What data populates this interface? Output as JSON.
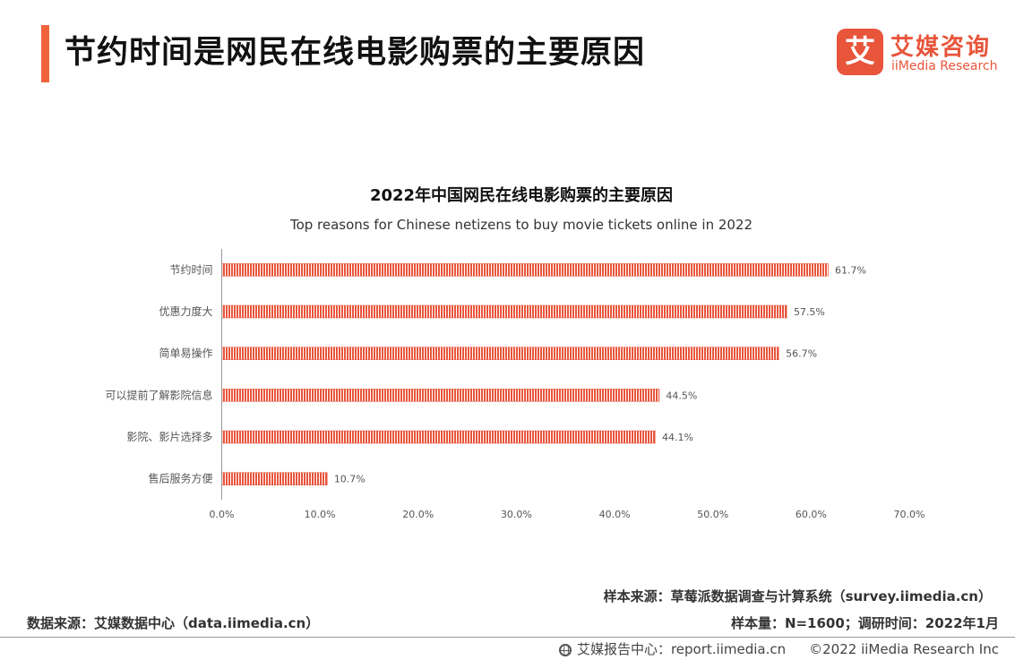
{
  "header": {
    "title": "节约时间是网民在线电影购票的主要原因",
    "accent_color": "#F0633A"
  },
  "logo": {
    "mark": "艾",
    "name_cn": "艾媒咨询",
    "name_en": "iiMedia Research",
    "color": "#E8553B"
  },
  "chart_data": {
    "type": "bar",
    "orientation": "horizontal",
    "title": "2022年中国网民在线电影购票的主要原因",
    "subtitle": "Top reasons for Chinese netizens to buy movie tickets online in 2022",
    "categories": [
      "节约时间",
      "优惠力度大",
      "简单易操作",
      "可以提前了解影院信息",
      "影院、影片选择多",
      "售后服务方便"
    ],
    "values": [
      61.7,
      57.5,
      56.7,
      44.5,
      44.1,
      10.7
    ],
    "value_labels": [
      "61.7%",
      "57.5%",
      "56.7%",
      "44.5%",
      "44.1%",
      "10.7%"
    ],
    "xlim": [
      0,
      70
    ],
    "x_ticks": [
      "0.0%",
      "10.0%",
      "20.0%",
      "30.0%",
      "40.0%",
      "50.0%",
      "60.0%",
      "70.0%"
    ],
    "bar_color": "#E8553B",
    "grid": false,
    "legend": "none"
  },
  "footer": {
    "source_right": "样本来源：草莓派数据调查与计算系统（survey.iimedia.cn）",
    "sample": "样本量：N=1600；调研时间：2022年1月",
    "source_left": "数据来源：艾媒数据中心（data.iimedia.cn）",
    "report_center": "艾媒报告中心：report.iimedia.cn",
    "copyright": "©2022  iiMedia Research  Inc"
  }
}
